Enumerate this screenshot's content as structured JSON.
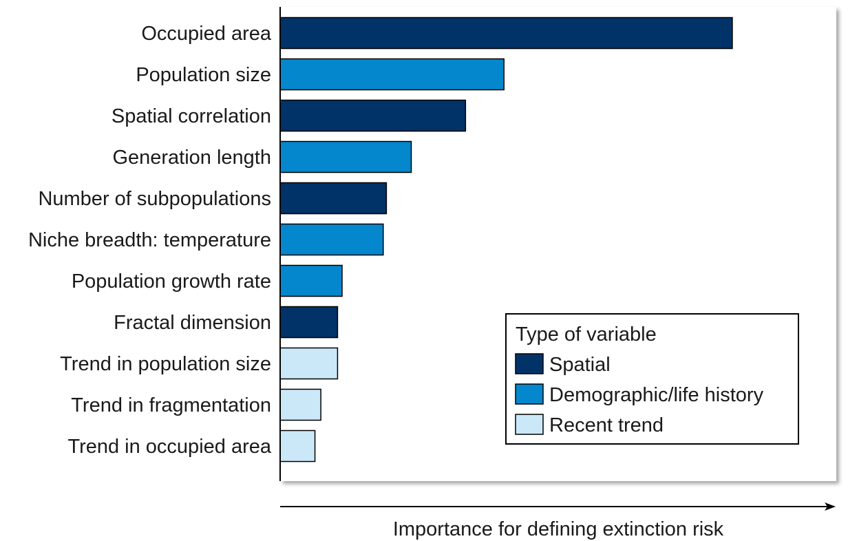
{
  "chart_data": {
    "type": "bar",
    "orientation": "horizontal",
    "categories": [
      "Occupied area",
      "Population size",
      "Spatial correlation",
      "Generation length",
      "Number of subpopulations",
      "Niche breadth: temperature",
      "Population growth rate",
      "Fractal dimension",
      "Trend in population size",
      "Trend in fragmentation",
      "Trend in occupied area"
    ],
    "values": [
      1.0,
      0.495,
      0.41,
      0.29,
      0.235,
      0.228,
      0.137,
      0.127,
      0.127,
      0.09,
      0.077
    ],
    "groups": [
      "spatial",
      "demographic",
      "spatial",
      "demographic",
      "spatial",
      "demographic",
      "demographic",
      "spatial",
      "trend",
      "trend",
      "trend"
    ],
    "xlabel": "Importance for defining extinction risk",
    "xlim": [
      0,
      1.23
    ],
    "legend": {
      "title": "Type of variable",
      "placement": "bottom-right",
      "items": [
        {
          "key": "spatial",
          "label": "Spatial",
          "color": "#013369"
        },
        {
          "key": "demographic",
          "label": "Demographic/life history",
          "color": "#0487cd"
        },
        {
          "key": "trend",
          "label": "Recent trend",
          "color": "#cae8f8"
        }
      ]
    }
  }
}
